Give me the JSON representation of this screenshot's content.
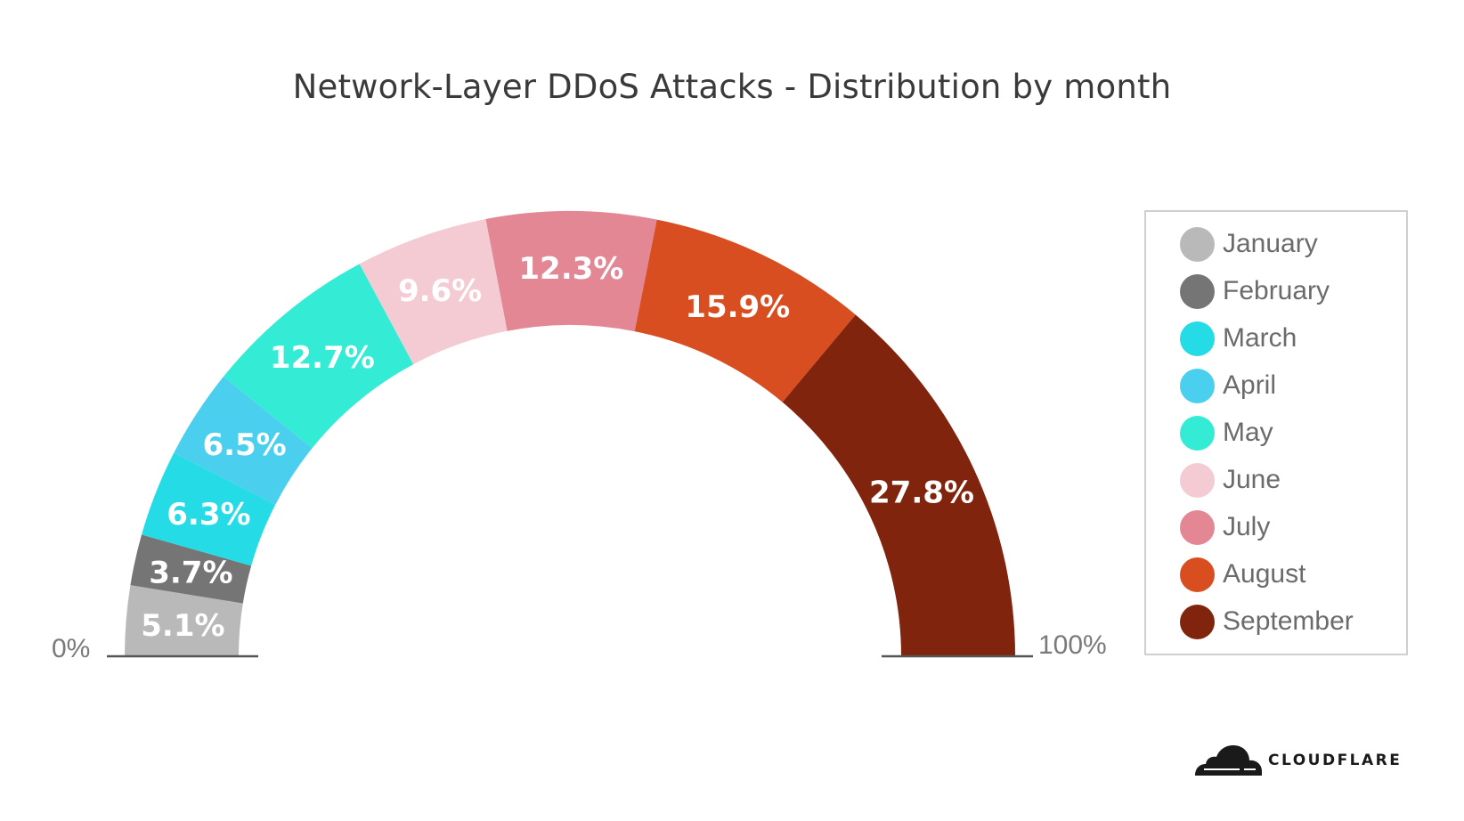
{
  "title": "Network-Layer DDoS Attacks - Distribution by month",
  "axis": {
    "min_label": "0%",
    "max_label": "100%"
  },
  "brand": {
    "name": "CLOUDFLARE",
    "icon": "cloud-logo-icon"
  },
  "legend": {
    "items": [
      {
        "label": "January",
        "color": "#b9b9b9"
      },
      {
        "label": "February",
        "color": "#757575"
      },
      {
        "label": "March",
        "color": "#24dbe6"
      },
      {
        "label": "April",
        "color": "#4bcfee"
      },
      {
        "label": "May",
        "color": "#34ecd6"
      },
      {
        "label": "June",
        "color": "#f5cbd3"
      },
      {
        "label": "July",
        "color": "#e38795"
      },
      {
        "label": "August",
        "color": "#d84e20"
      },
      {
        "label": "September",
        "color": "#80240d"
      }
    ]
  },
  "chart_data": {
    "type": "pie",
    "variant": "half-donut gauge",
    "title": "Network-Layer DDoS Attacks - Distribution by month",
    "categories": [
      "January",
      "February",
      "March",
      "April",
      "May",
      "June",
      "July",
      "August",
      "September"
    ],
    "values": [
      5.1,
      3.7,
      6.3,
      6.5,
      12.7,
      9.6,
      12.3,
      15.9,
      27.8
    ],
    "labels": [
      "5.1%",
      "3.7%",
      "6.3%",
      "6.5%",
      "12.7%",
      "9.6%",
      "12.3%",
      "15.9%",
      "27.8%"
    ],
    "colors": [
      "#b9b9b9",
      "#757575",
      "#24dbe6",
      "#4bcfee",
      "#34ecd6",
      "#f5cbd3",
      "#e38795",
      "#d84e20",
      "#80240d"
    ],
    "range": [
      "0%",
      "100%"
    ],
    "legend_position": "right",
    "unit": "%"
  }
}
